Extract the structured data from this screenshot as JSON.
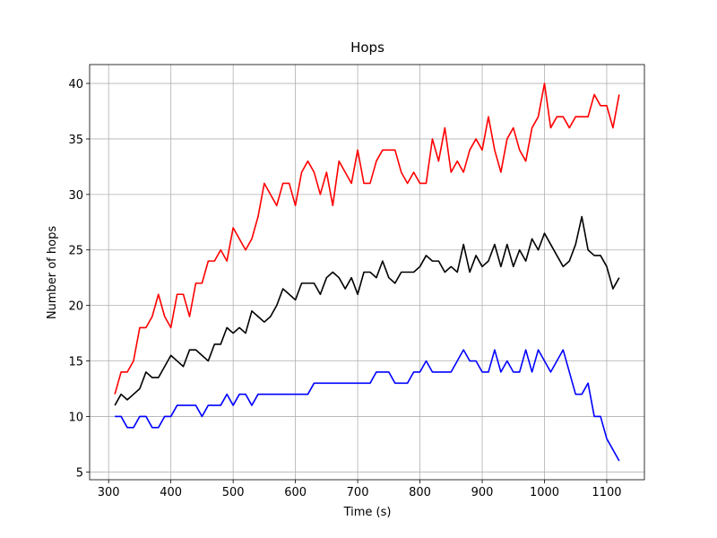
{
  "chart_data": {
    "type": "line",
    "title": "Hops",
    "xlabel": "Time (s)",
    "ylabel": "Number of hops",
    "x": [
      310,
      320,
      330,
      340,
      350,
      360,
      370,
      380,
      390,
      400,
      410,
      420,
      430,
      440,
      450,
      460,
      470,
      480,
      490,
      500,
      510,
      520,
      530,
      540,
      550,
      560,
      570,
      580,
      590,
      600,
      610,
      620,
      630,
      640,
      650,
      660,
      670,
      680,
      690,
      700,
      710,
      720,
      730,
      740,
      750,
      760,
      770,
      780,
      790,
      800,
      810,
      820,
      830,
      840,
      850,
      860,
      870,
      880,
      890,
      900,
      910,
      920,
      930,
      940,
      950,
      960,
      970,
      980,
      990,
      1000,
      1010,
      1020,
      1030,
      1040,
      1050,
      1060,
      1070,
      1080,
      1090,
      1100,
      1110,
      1120
    ],
    "series": [
      {
        "color": "#ff0000",
        "values": [
          12,
          14,
          14,
          15,
          18,
          18,
          19,
          21,
          19,
          18,
          21,
          21,
          19,
          22,
          22,
          24,
          24,
          25,
          24,
          27,
          26,
          25,
          26,
          28,
          31,
          30,
          29,
          31,
          31,
          29,
          32,
          33,
          32,
          30,
          32,
          29,
          33,
          32,
          31,
          34,
          31,
          31,
          33,
          34,
          34,
          34,
          32,
          31,
          32,
          31,
          31,
          35,
          33,
          36,
          32,
          33,
          32,
          34,
          35,
          34,
          37,
          34,
          32,
          35,
          36,
          34,
          33,
          36,
          37,
          40,
          36,
          37,
          37,
          36,
          37,
          37,
          37,
          39,
          38,
          38,
          36,
          39
        ]
      },
      {
        "color": "#000000",
        "values": [
          11,
          12,
          11.5,
          12,
          12.5,
          14,
          13.5,
          13.5,
          14.5,
          15.5,
          15,
          14.5,
          16,
          16,
          15.5,
          15,
          16.5,
          16.5,
          18,
          17.5,
          18,
          17.5,
          19.5,
          19,
          18.5,
          19,
          20,
          21.5,
          21,
          20.5,
          22,
          22,
          22,
          21,
          22.5,
          23,
          22.5,
          21.5,
          22.5,
          21,
          23,
          23,
          22.5,
          24,
          22.5,
          22,
          23,
          23,
          23,
          23.5,
          24.5,
          24,
          24,
          23,
          23.5,
          23,
          25.5,
          23,
          24.5,
          23.5,
          24,
          25.5,
          23.5,
          25.5,
          23.5,
          25,
          24,
          26,
          25,
          26.5,
          25.5,
          24.5,
          23.5,
          24,
          25.5,
          28,
          25,
          24.5,
          24.5,
          23.5,
          21.5,
          22.5
        ]
      },
      {
        "color": "#0000ff",
        "values": [
          10,
          10,
          9,
          9,
          10,
          10,
          9,
          9,
          10,
          10,
          11,
          11,
          11,
          11,
          10,
          11,
          11,
          11,
          12,
          11,
          12,
          12,
          11,
          12,
          12,
          12,
          12,
          12,
          12,
          12,
          12,
          12,
          13,
          13,
          13,
          13,
          13,
          13,
          13,
          13,
          13,
          13,
          14,
          14,
          14,
          13,
          13,
          13,
          14,
          14,
          15,
          14,
          14,
          14,
          14,
          15,
          16,
          15,
          15,
          14,
          14,
          16,
          14,
          15,
          14,
          14,
          16,
          14,
          16,
          15,
          14,
          15,
          16,
          14,
          12,
          12,
          13,
          10,
          10,
          8,
          7,
          6
        ]
      }
    ],
    "xlim": [
      269.5,
      1160.5
    ],
    "xticks": [
      300,
      400,
      500,
      600,
      700,
      800,
      900,
      1000,
      1100
    ],
    "ylim": [
      4.3,
      41.7
    ],
    "yticks": [
      5,
      10,
      15,
      20,
      25,
      30,
      35,
      40
    ],
    "grid": true
  }
}
